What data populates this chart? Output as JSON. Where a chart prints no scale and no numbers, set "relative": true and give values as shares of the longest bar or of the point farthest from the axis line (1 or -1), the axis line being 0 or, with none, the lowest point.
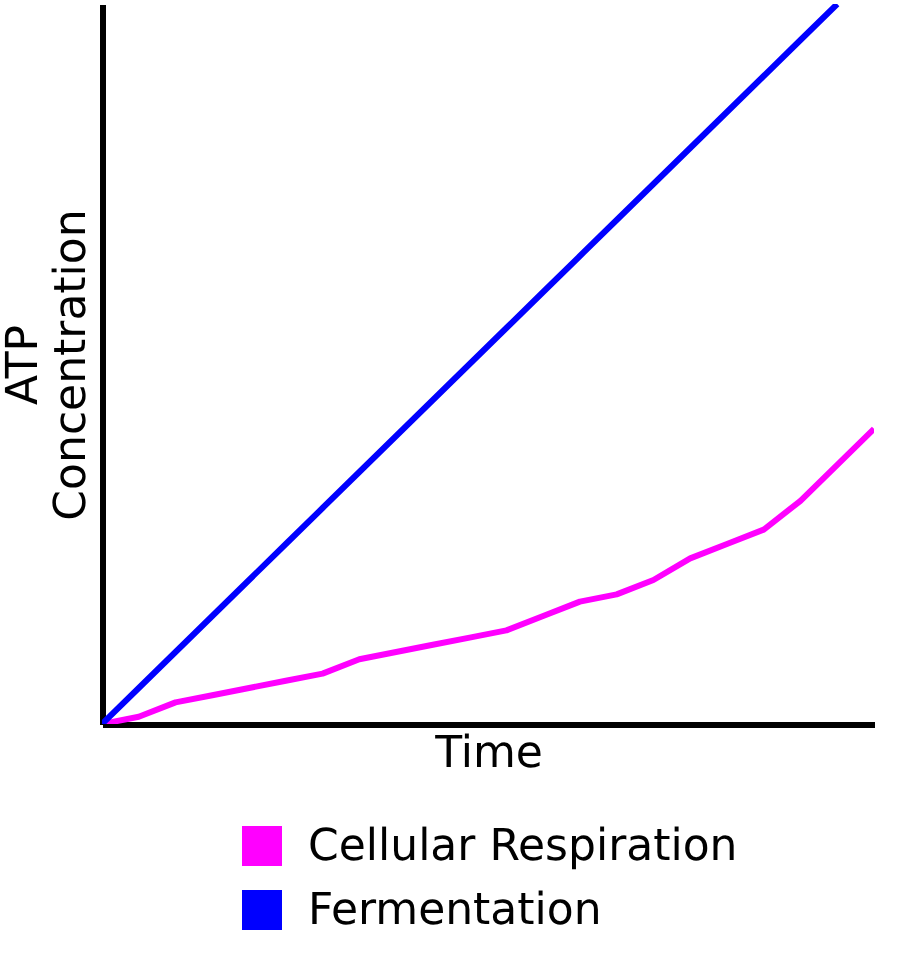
{
  "chart_data": {
    "type": "line",
    "relative": true,
    "xlabel": "Time",
    "ylabel": "ATP Concentration",
    "tick_labels": false,
    "legend": "bottom",
    "grid": false,
    "marker": "none",
    "line_style": "solid",
    "categories": [
      null,
      null,
      null,
      null,
      null,
      null,
      null,
      null,
      null,
      null,
      null,
      null,
      null,
      null,
      null,
      null,
      null,
      null,
      null,
      null,
      null,
      null
    ],
    "series": [
      {
        "name": "Cellular Respiration",
        "color": "#ff00ff",
        "values": [
          0,
          0.01,
          0.03,
          0.04,
          0.05,
          0.06,
          0.07,
          0.09,
          0.1,
          0.11,
          0.12,
          0.13,
          0.15,
          0.17,
          0.18,
          0.2,
          0.23,
          0.25,
          0.27,
          0.31,
          0.36,
          0.41
        ]
      },
      {
        "name": "Fermentation",
        "color": "#0000ff",
        "values": [
          0,
          0.05,
          0.1,
          0.15,
          0.2,
          0.25,
          0.3,
          0.35,
          0.4,
          0.45,
          0.5,
          0.55,
          0.6,
          0.65,
          0.7,
          0.75,
          0.8,
          0.85,
          0.9,
          0.95,
          1,
          null
        ]
      }
    ]
  }
}
